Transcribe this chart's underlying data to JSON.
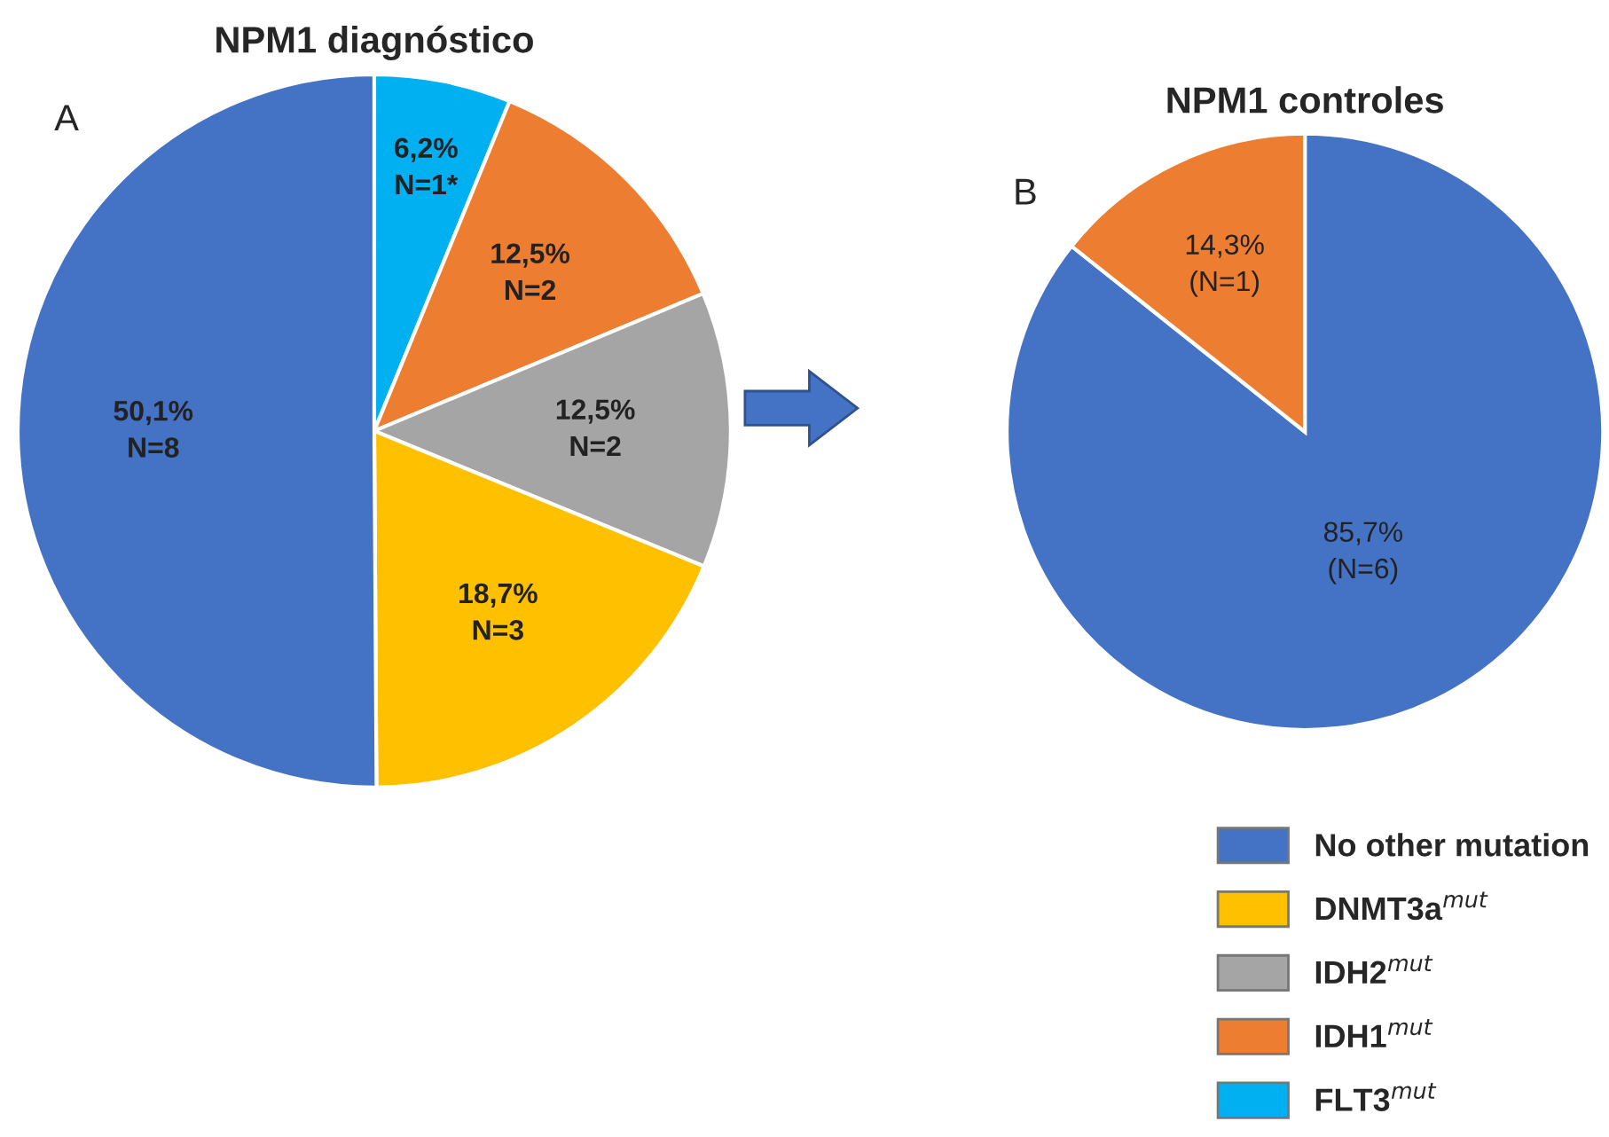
{
  "chart_data": [
    {
      "type": "pie",
      "title": "NPM1 diagnóstico",
      "annotations": [
        "A"
      ],
      "categories": [
        "FLT3$^{mut}$",
        "IDH1$^{mut}$",
        "IDH2$^{mut}$",
        "DNMT3a$^{mut}$",
        "No other mutation"
      ],
      "values": [
        6.2,
        12.5,
        12.5,
        18.7,
        50.1
      ],
      "colors": [
        "#00b0f0",
        "#ed7d31",
        "#a5a5a5",
        "#ffc000",
        "#4472c4"
      ],
      "value_labels": [
        "6,2%\nN=1*",
        "12,5%\nN=2",
        "12,5%\nN=2",
        "18,7%\nN=3",
        "50,1%\nN=8"
      ],
      "legend": "bottom right"
    },
    {
      "type": "pie",
      "title": "NPM1 controles",
      "annotations": [
        "B"
      ],
      "categories": [
        null,
        null
      ],
      "values": [
        85.7,
        14.3
      ],
      "colors": [
        "#4472c4",
        "#ed7d31"
      ],
      "value_labels": [
        "85,7%\n(N=6)",
        "14,3%\n(N=1)"
      ]
    }
  ]
}
